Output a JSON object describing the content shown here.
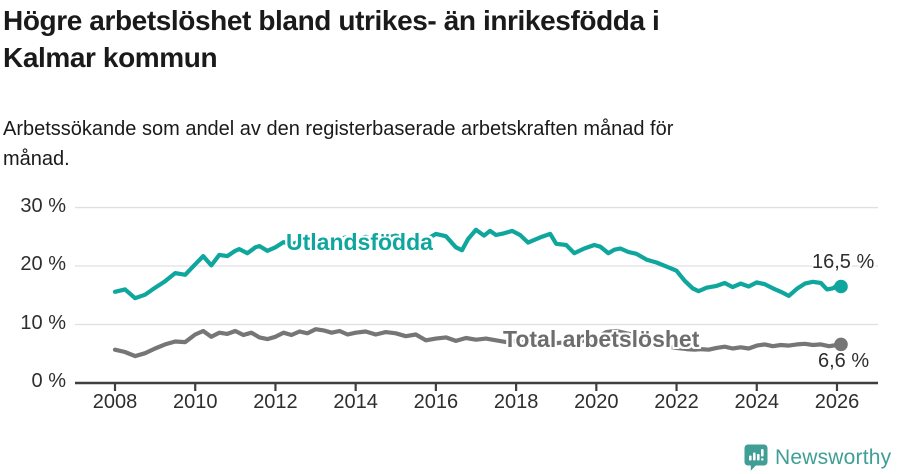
{
  "title": {
    "lines": [
      "Högre arbetslöshet bland utrikes- än inrikesfödda i",
      "Kalmar kommun"
    ]
  },
  "subtitle": {
    "lines": [
      "Arbetssökande som andel av den registerbaserade arbetskraften månad för",
      "månad."
    ]
  },
  "footer": {
    "brand": "Newsworthy",
    "brand_color": "#3f9e96",
    "logo_icon": "newsworthy-bar-chart-bubble-icon"
  },
  "chart_data": {
    "type": "line",
    "title": "Högre arbetslöshet bland utrikes- än inrikesfödda i Kalmar kommun",
    "subtitle": "Arbetssökande som andel av den registerbaserade arbetskraften månad för månad.",
    "x_unit": "decimal_year",
    "y_unit": "percent",
    "xlim": [
      2007,
      2027
    ],
    "ylim": [
      0,
      30
    ],
    "grid": "horizontal",
    "legend_position": "inline-line-labels",
    "colors": {
      "grid": "#e0e0e0",
      "axis": "#3f3f3f",
      "tick_text": "#2e2e2e"
    },
    "yticks": [
      {
        "value": 0,
        "label": "0 %"
      },
      {
        "value": 10,
        "label": "10 %"
      },
      {
        "value": 20,
        "label": "20 %"
      },
      {
        "value": 30,
        "label": "30 %"
      }
    ],
    "xticks": [
      {
        "value": 2008,
        "label": "2008"
      },
      {
        "value": 2010,
        "label": "2010"
      },
      {
        "value": 2012,
        "label": "2012"
      },
      {
        "value": 2014,
        "label": "2014"
      },
      {
        "value": 2016,
        "label": "2016"
      },
      {
        "value": 2018,
        "label": "2018"
      },
      {
        "value": 2020,
        "label": "2020"
      },
      {
        "value": 2022,
        "label": "2022"
      },
      {
        "value": 2024,
        "label": "2024"
      },
      {
        "value": 2026,
        "label": "2026"
      }
    ],
    "series": [
      {
        "name": "Utlandsfödda",
        "color": "#0fa69d",
        "end_label": "16,5 %",
        "end_value": 16.5,
        "points": [
          [
            2008,
            15.6
          ],
          [
            2008.25,
            16
          ],
          [
            2008.5,
            14.5
          ],
          [
            2008.75,
            15.1
          ],
          [
            2009,
            16.3
          ],
          [
            2009.25,
            17.4
          ],
          [
            2009.5,
            18.8
          ],
          [
            2009.75,
            18.5
          ],
          [
            2010,
            20.3
          ],
          [
            2010.2,
            21.7
          ],
          [
            2010.4,
            20.1
          ],
          [
            2010.6,
            21.9
          ],
          [
            2010.8,
            21.7
          ],
          [
            2011,
            22.6
          ],
          [
            2011.1,
            22.9
          ],
          [
            2011.3,
            22.2
          ],
          [
            2011.5,
            23.2
          ],
          [
            2011.6,
            23.4
          ],
          [
            2011.8,
            22.6
          ],
          [
            2012,
            23.2
          ],
          [
            2012.2,
            24.1
          ],
          [
            2012.4,
            23.7
          ],
          [
            2012.6,
            24.2
          ],
          [
            2012.8,
            24.6
          ],
          [
            2013,
            24.2
          ],
          [
            2013.25,
            24.8
          ],
          [
            2013.5,
            24.4
          ],
          [
            2013.75,
            24.9
          ],
          [
            2014,
            24.5
          ],
          [
            2014.25,
            25
          ],
          [
            2014.5,
            24.4
          ],
          [
            2014.75,
            24.8
          ],
          [
            2015,
            25.2
          ],
          [
            2015.25,
            24.6
          ],
          [
            2015.5,
            25
          ],
          [
            2015.75,
            24.5
          ],
          [
            2016,
            25.5
          ],
          [
            2016.25,
            25.1
          ],
          [
            2016.5,
            23.2
          ],
          [
            2016.65,
            22.7
          ],
          [
            2016.8,
            24.6
          ],
          [
            2017,
            26.2
          ],
          [
            2017.2,
            25.2
          ],
          [
            2017.35,
            26
          ],
          [
            2017.5,
            25.3
          ],
          [
            2017.7,
            25.6
          ],
          [
            2017.9,
            26
          ],
          [
            2018.1,
            25.3
          ],
          [
            2018.3,
            24
          ],
          [
            2018.6,
            24.9
          ],
          [
            2018.85,
            25.5
          ],
          [
            2019,
            23.8
          ],
          [
            2019.25,
            23.6
          ],
          [
            2019.45,
            22.2
          ],
          [
            2019.7,
            23
          ],
          [
            2019.95,
            23.6
          ],
          [
            2020.1,
            23.3
          ],
          [
            2020.3,
            22.2
          ],
          [
            2020.45,
            22.8
          ],
          [
            2020.6,
            23
          ],
          [
            2020.8,
            22.4
          ],
          [
            2021,
            22.1
          ],
          [
            2021.25,
            21.1
          ],
          [
            2021.5,
            20.6
          ],
          [
            2021.75,
            19.9
          ],
          [
            2022,
            19.2
          ],
          [
            2022.2,
            17.5
          ],
          [
            2022.4,
            16.2
          ],
          [
            2022.55,
            15.7
          ],
          [
            2022.75,
            16.3
          ],
          [
            2023,
            16.6
          ],
          [
            2023.2,
            17.1
          ],
          [
            2023.4,
            16.4
          ],
          [
            2023.6,
            17
          ],
          [
            2023.8,
            16.5
          ],
          [
            2024,
            17.2
          ],
          [
            2024.2,
            16.9
          ],
          [
            2024.4,
            16.2
          ],
          [
            2024.6,
            15.6
          ],
          [
            2024.8,
            14.9
          ],
          [
            2025,
            16.1
          ],
          [
            2025.2,
            17
          ],
          [
            2025.4,
            17.3
          ],
          [
            2025.6,
            17.1
          ],
          [
            2025.75,
            16
          ],
          [
            2025.9,
            16.2
          ],
          [
            2026,
            16.7
          ],
          [
            2026.1,
            16.5
          ]
        ]
      },
      {
        "name": "Total arbetslöshet",
        "color": "#767676",
        "end_label": "6,6 %",
        "end_value": 6.6,
        "points": [
          [
            2008,
            5.7
          ],
          [
            2008.25,
            5.3
          ],
          [
            2008.5,
            4.6
          ],
          [
            2008.75,
            5.1
          ],
          [
            2009,
            5.9
          ],
          [
            2009.25,
            6.6
          ],
          [
            2009.5,
            7.1
          ],
          [
            2009.75,
            7
          ],
          [
            2010,
            8.3
          ],
          [
            2010.2,
            8.9
          ],
          [
            2010.4,
            7.9
          ],
          [
            2010.6,
            8.6
          ],
          [
            2010.8,
            8.4
          ],
          [
            2011,
            8.9
          ],
          [
            2011.2,
            8.2
          ],
          [
            2011.4,
            8.6
          ],
          [
            2011.6,
            7.8
          ],
          [
            2011.8,
            7.5
          ],
          [
            2012,
            7.9
          ],
          [
            2012.2,
            8.6
          ],
          [
            2012.4,
            8.2
          ],
          [
            2012.6,
            8.8
          ],
          [
            2012.8,
            8.5
          ],
          [
            2013,
            9.2
          ],
          [
            2013.2,
            9
          ],
          [
            2013.4,
            8.6
          ],
          [
            2013.6,
            8.9
          ],
          [
            2013.8,
            8.3
          ],
          [
            2014,
            8.6
          ],
          [
            2014.25,
            8.8
          ],
          [
            2014.5,
            8.3
          ],
          [
            2014.75,
            8.7
          ],
          [
            2015,
            8.5
          ],
          [
            2015.25,
            8
          ],
          [
            2015.5,
            8.3
          ],
          [
            2015.75,
            7.3
          ],
          [
            2016,
            7.6
          ],
          [
            2016.25,
            7.8
          ],
          [
            2016.5,
            7.2
          ],
          [
            2016.75,
            7.7
          ],
          [
            2017,
            7.4
          ],
          [
            2017.25,
            7.6
          ],
          [
            2017.5,
            7.3
          ],
          [
            2017.75,
            7
          ],
          [
            2018,
            7.2
          ],
          [
            2018.25,
            6.8
          ],
          [
            2018.5,
            7
          ],
          [
            2018.75,
            6.6
          ],
          [
            2019,
            6.8
          ],
          [
            2019.25,
            7
          ],
          [
            2019.5,
            7.1
          ],
          [
            2019.75,
            7.3
          ],
          [
            2020,
            7.7
          ],
          [
            2020.25,
            8.7
          ],
          [
            2020.5,
            8.9
          ],
          [
            2020.75,
            8.5
          ],
          [
            2021,
            8.1
          ],
          [
            2021.25,
            7.5
          ],
          [
            2021.5,
            6.9
          ],
          [
            2021.75,
            6.3
          ],
          [
            2022,
            6
          ],
          [
            2022.25,
            5.8
          ],
          [
            2022.45,
            5.7
          ],
          [
            2022.6,
            5.8
          ],
          [
            2022.8,
            5.7
          ],
          [
            2023,
            6
          ],
          [
            2023.2,
            6.2
          ],
          [
            2023.4,
            5.9
          ],
          [
            2023.6,
            6.1
          ],
          [
            2023.8,
            5.9
          ],
          [
            2024,
            6.4
          ],
          [
            2024.2,
            6.6
          ],
          [
            2024.4,
            6.3
          ],
          [
            2024.6,
            6.5
          ],
          [
            2024.8,
            6.4
          ],
          [
            2025,
            6.6
          ],
          [
            2025.2,
            6.7
          ],
          [
            2025.4,
            6.5
          ],
          [
            2025.6,
            6.6
          ],
          [
            2025.8,
            6.3
          ],
          [
            2026,
            6.5
          ],
          [
            2026.1,
            6.6
          ]
        ]
      }
    ]
  }
}
